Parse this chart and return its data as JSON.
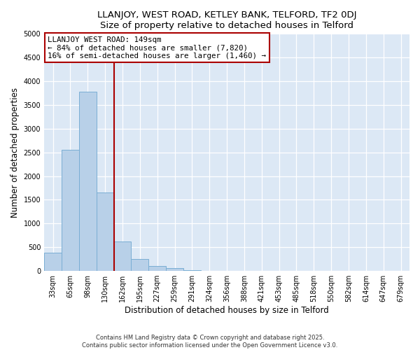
{
  "title": "LLANJOY, WEST ROAD, KETLEY BANK, TELFORD, TF2 0DJ",
  "subtitle": "Size of property relative to detached houses in Telford",
  "xlabel": "Distribution of detached houses by size in Telford",
  "ylabel": "Number of detached properties",
  "bar_color": "#b8d0e8",
  "bar_edge_color": "#7aaed4",
  "background_color": "#dce8f5",
  "bins": [
    "33sqm",
    "65sqm",
    "98sqm",
    "130sqm",
    "162sqm",
    "195sqm",
    "227sqm",
    "259sqm",
    "291sqm",
    "324sqm",
    "356sqm",
    "388sqm",
    "421sqm",
    "453sqm",
    "485sqm",
    "518sqm",
    "550sqm",
    "582sqm",
    "614sqm",
    "647sqm",
    "679sqm"
  ],
  "values": [
    390,
    2550,
    3780,
    1650,
    620,
    250,
    100,
    55,
    10,
    5,
    2,
    0,
    0,
    0,
    0,
    0,
    0,
    0,
    0,
    0,
    0
  ],
  "ylim": [
    0,
    5000
  ],
  "yticks": [
    0,
    500,
    1000,
    1500,
    2000,
    2500,
    3000,
    3500,
    4000,
    4500,
    5000
  ],
  "annotation_title": "LLANJOY WEST ROAD: 149sqm",
  "annotation_line2": "← 84% of detached houses are smaller (7,820)",
  "annotation_line3": "16% of semi-detached houses are larger (1,460) →",
  "vline_color": "#aa0000",
  "footer1": "Contains HM Land Registry data © Crown copyright and database right 2025.",
  "footer2": "Contains public sector information licensed under the Open Government Licence v3.0."
}
